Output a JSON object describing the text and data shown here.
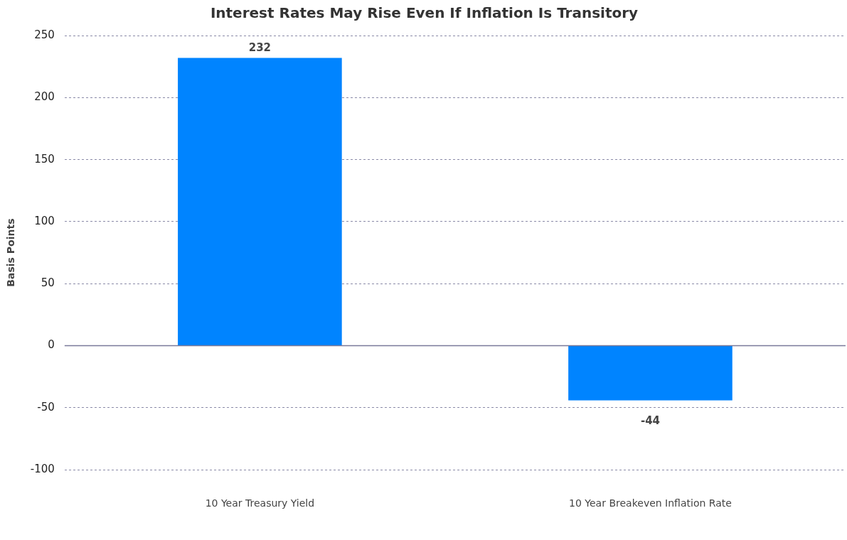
{
  "chart_data": {
    "type": "bar",
    "title": "Interest Rates May Rise Even If Inflation Is Transitory",
    "ylabel": "Basis Points",
    "categories": [
      "10 Year Treasury Yield",
      "10 Year Breakeven Inflation Rate"
    ],
    "values": [
      232,
      -44
    ],
    "color": "#0084ff",
    "data_labels": true,
    "ylim": [
      -100,
      250
    ],
    "yticks": [
      -100,
      -50,
      0,
      50,
      100,
      150,
      200,
      250
    ],
    "grid": "y",
    "legend": false
  }
}
